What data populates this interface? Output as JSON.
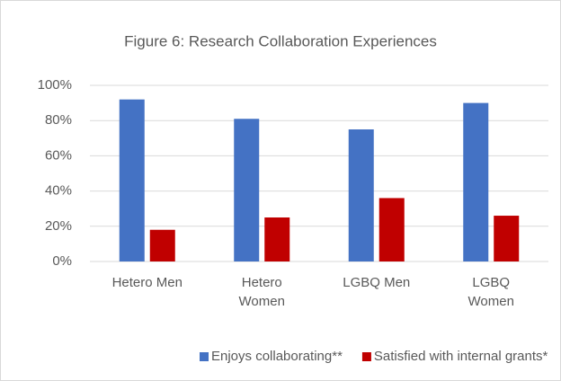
{
  "chart_data": {
    "type": "bar",
    "title": "Figure 6: Research Collaboration Experiences",
    "categories": [
      "Hetero Men",
      "Hetero Women",
      "LGBQ Men",
      "LGBQ Women"
    ],
    "series": [
      {
        "name": "Enjoys collaborating**",
        "color": "#4472c4",
        "values": [
          92,
          81,
          75,
          90
        ]
      },
      {
        "name": "Satisfied with internal grants*",
        "color": "#c00000",
        "values": [
          18,
          25,
          36,
          26
        ]
      }
    ],
    "ylim": [
      0,
      100
    ],
    "yticks": [
      {
        "value": 0,
        "label": "0%"
      },
      {
        "value": 20,
        "label": "20%"
      },
      {
        "value": 40,
        "label": "40%"
      },
      {
        "value": 60,
        "label": "60%"
      },
      {
        "value": 80,
        "label": "80%"
      },
      {
        "value": 100,
        "label": "100%"
      }
    ],
    "grid": true,
    "legend": "bottom"
  }
}
